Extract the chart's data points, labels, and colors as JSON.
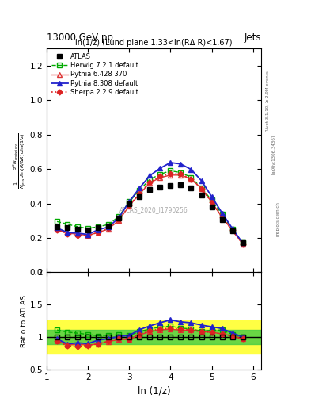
{
  "title_top": "13000 GeV pp",
  "title_right": "Jets",
  "plot_title": "ln(1/z) (Lund plane 1.33<ln(RΔ R)<1.67)",
  "xlabel": "ln (1/z)",
  "ylabel_main": "$\\frac{1}{N_{jets}}\\frac{d^2 N_{emissions}}{d\\ln(R/\\Delta R)\\,d\\ln(1/z)}$",
  "ylabel_ratio": "Ratio to ATLAS",
  "watermark": "ATLAS_2020_I1790256",
  "rivet_label": "Rivet 3.1.10, ≥ 2.9M events",
  "arxiv_label": "[arXiv:1306.3436]",
  "mcplots_label": "mcplots.cern.ch",
  "xlim": [
    1.0,
    6.2
  ],
  "ylim_main": [
    0.0,
    1.3
  ],
  "ylim_ratio": [
    0.5,
    2.0
  ],
  "x_data": [
    1.25,
    1.5,
    1.75,
    2.0,
    2.25,
    2.5,
    2.75,
    3.0,
    3.25,
    3.5,
    3.75,
    4.0,
    4.25,
    4.5,
    4.75,
    5.0,
    5.25,
    5.5,
    5.75
  ],
  "y_atlas": [
    0.265,
    0.26,
    0.25,
    0.245,
    0.26,
    0.27,
    0.315,
    0.4,
    0.44,
    0.48,
    0.495,
    0.505,
    0.51,
    0.49,
    0.45,
    0.38,
    0.305,
    0.24,
    0.17
  ],
  "y_herwig": [
    0.295,
    0.28,
    0.265,
    0.255,
    0.265,
    0.278,
    0.325,
    0.41,
    0.477,
    0.54,
    0.57,
    0.59,
    0.58,
    0.552,
    0.49,
    0.42,
    0.338,
    0.25,
    0.17
  ],
  "y_pythia6": [
    0.25,
    0.228,
    0.222,
    0.215,
    0.232,
    0.252,
    0.302,
    0.385,
    0.455,
    0.52,
    0.55,
    0.565,
    0.565,
    0.542,
    0.488,
    0.408,
    0.32,
    0.244,
    0.165
  ],
  "y_pythia8": [
    0.258,
    0.232,
    0.228,
    0.22,
    0.248,
    0.263,
    0.318,
    0.41,
    0.49,
    0.562,
    0.605,
    0.638,
    0.63,
    0.598,
    0.533,
    0.44,
    0.345,
    0.255,
    0.17
  ],
  "y_sherpa": [
    0.248,
    0.225,
    0.215,
    0.213,
    0.233,
    0.253,
    0.308,
    0.388,
    0.458,
    0.525,
    0.558,
    0.573,
    0.573,
    0.543,
    0.487,
    0.408,
    0.32,
    0.244,
    0.165
  ],
  "color_herwig": "#00aa00",
  "color_pythia6": "#dd3333",
  "color_pythia8": "#2222cc",
  "color_sherpa": "#dd2222",
  "ratio_herwig": [
    1.11,
    1.077,
    1.06,
    1.041,
    1.019,
    1.03,
    1.032,
    1.025,
    1.084,
    1.125,
    1.152,
    1.168,
    1.137,
    1.127,
    1.089,
    1.105,
    1.108,
    1.042,
    1.0
  ],
  "ratio_pythia6": [
    0.943,
    0.877,
    0.888,
    0.878,
    0.892,
    0.933,
    0.959,
    0.963,
    1.034,
    1.083,
    1.111,
    1.119,
    1.108,
    1.106,
    1.085,
    1.074,
    1.049,
    1.017,
    0.971
  ],
  "ratio_pythia8": [
    0.973,
    0.892,
    0.912,
    0.898,
    0.954,
    0.974,
    1.01,
    1.025,
    1.114,
    1.171,
    1.222,
    1.264,
    1.235,
    1.22,
    1.184,
    1.158,
    1.131,
    1.063,
    1.0
  ],
  "ratio_sherpa": [
    0.936,
    0.865,
    0.86,
    0.871,
    0.896,
    0.937,
    0.978,
    0.97,
    1.041,
    1.094,
    1.127,
    1.134,
    1.124,
    1.108,
    1.083,
    1.074,
    1.049,
    1.017,
    0.971
  ],
  "band_yellow_lo": 0.74,
  "band_yellow_hi": 1.26,
  "band_green_lo": 0.895,
  "band_green_hi": 1.105
}
